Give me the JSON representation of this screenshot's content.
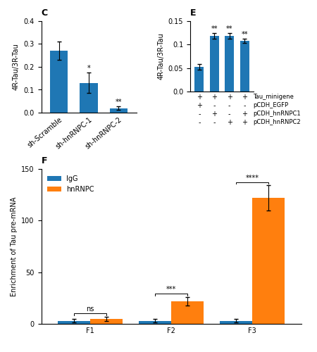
{
  "chart_data": [
    {
      "type": "bar",
      "title": "C",
      "categories": [
        "sh-Scramble",
        "sh-hnRNPC-1",
        "sh-hnRNPC-2"
      ],
      "values": [
        0.27,
        0.13,
        0.02
      ],
      "errors": [
        0.04,
        0.045,
        0.008
      ],
      "ylabel": "4R-Tau/3R-Tau",
      "ylim": [
        0,
        0.4
      ],
      "yticks": [
        0.0,
        0.1,
        0.2,
        0.3,
        0.4
      ],
      "sig_labels": [
        null,
        "*",
        "**"
      ]
    },
    {
      "type": "bar",
      "title": "E",
      "values": [
        0.052,
        0.118,
        0.118,
        0.108
      ],
      "errors": [
        0.006,
        0.006,
        0.006,
        0.005
      ],
      "ylabel": "4R-Tau/3R-Tau",
      "ylim": [
        0.0,
        0.15
      ],
      "yticks": [
        0.0,
        0.05,
        0.1,
        0.15
      ],
      "sig_labels": [
        null,
        "**",
        "**",
        "**"
      ],
      "tick_labels": "y",
      "row_labels": [
        "Tau_minigene",
        "pCDH_EGFP",
        "pCDH_hnRNPC1",
        "pCDH_hnRNPC2"
      ],
      "row_values": [
        [
          "+",
          "+",
          "+",
          "+"
        ],
        [
          "+",
          "-",
          "-",
          "-"
        ],
        [
          "-",
          "+",
          "-",
          "+"
        ],
        [
          "-",
          "-",
          "+",
          "+"
        ]
      ]
    },
    {
      "type": "bar",
      "title": "F",
      "categories": [
        "F1",
        "F2",
        "F3"
      ],
      "series": [
        {
          "name": "IgG",
          "values": [
            3,
            3,
            3
          ],
          "errors": [
            1.5,
            1.5,
            1.5
          ]
        },
        {
          "name": "hnRNPC",
          "values": [
            5,
            22,
            122
          ],
          "errors": [
            2,
            4,
            12
          ]
        }
      ],
      "ylabel": "Enrichment of Tau pre-mRNA",
      "ylim": [
        0,
        150
      ],
      "yticks": [
        0,
        50,
        100,
        150
      ],
      "legend": "upper left",
      "sig_labels": [
        "ns",
        "***",
        "****"
      ]
    }
  ]
}
